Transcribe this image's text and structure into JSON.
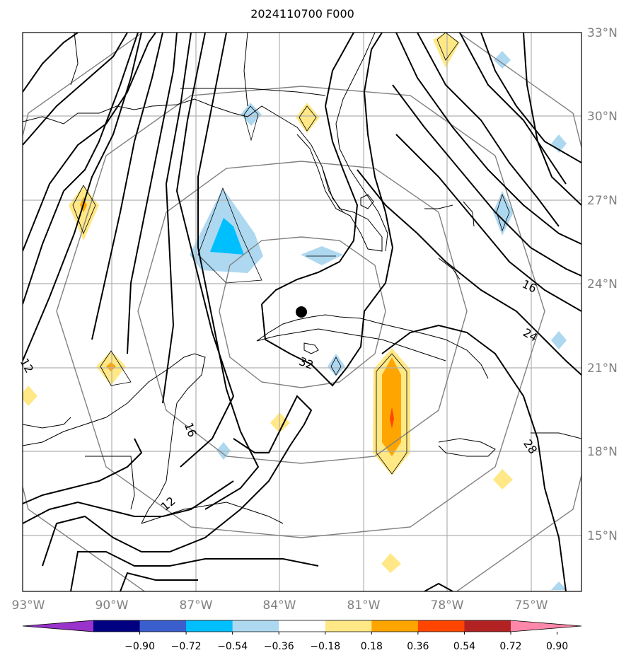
{
  "title": "2024110700 F000",
  "map": {
    "lon_ticks": [
      "93°W",
      "90°W",
      "87°W",
      "84°W",
      "81°W",
      "78°W",
      "75°W"
    ],
    "lat_ticks": [
      "33°N",
      "30°N",
      "27°N",
      "24°N",
      "21°N",
      "18°N",
      "15°N"
    ],
    "extent": {
      "lon": [
        -93,
        -73
      ],
      "lat": [
        13,
        33
      ]
    },
    "center_marker": {
      "lon": -82.3,
      "lat": 23.0
    },
    "contour_labels": [
      "16",
      "24",
      "28",
      "32",
      "12",
      "16",
      "12"
    ]
  },
  "colorbar": {
    "tick_labels": [
      "−0.90",
      "−0.72",
      "−0.54",
      "−0.36",
      "−0.18",
      "0.18",
      "0.36",
      "0.54",
      "0.72",
      "0.90"
    ],
    "colors": [
      "#9933cc",
      "#000080",
      "#3a5fcd",
      "#00bfff",
      "#add8f0",
      "#ffffff",
      "#ffe885",
      "#ffa500",
      "#ff4500",
      "#b22222",
      "#ff88aa"
    ]
  }
}
